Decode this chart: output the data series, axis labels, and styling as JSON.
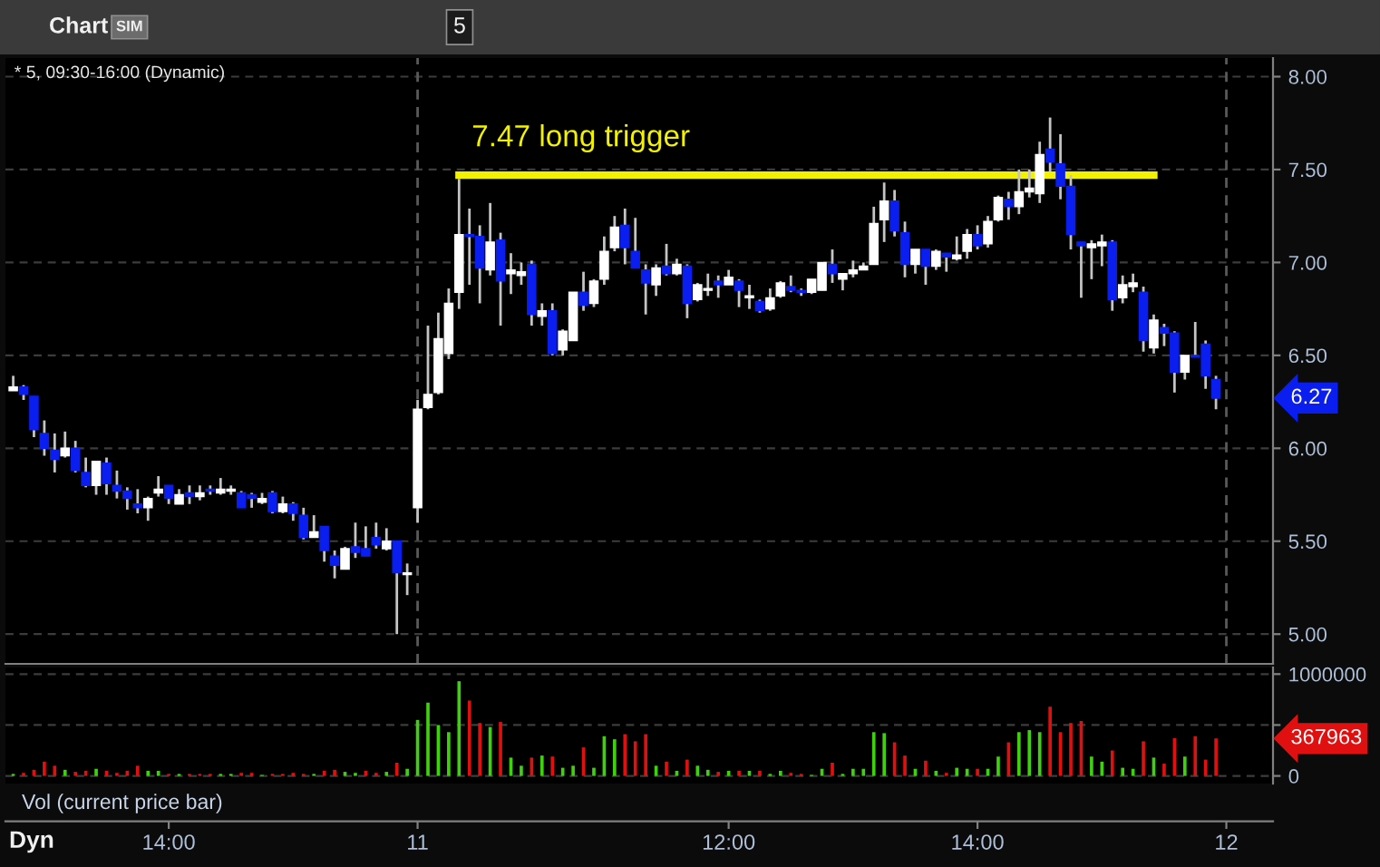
{
  "chart_data": [
    {
      "type": "candlestick",
      "title": "* 5, 09:30-16:00 (Dynamic)",
      "categories": [
        null,
        null,
        null,
        null,
        null,
        null,
        null,
        null,
        null,
        null,
        null,
        null,
        null,
        null,
        null,
        null,
        null,
        null,
        null,
        null,
        null,
        null,
        null,
        null,
        null,
        null,
        null,
        null,
        null,
        null,
        null,
        null,
        null,
        null,
        null,
        null,
        null,
        null,
        null,
        null,
        null,
        null,
        null,
        null,
        null,
        null,
        null,
        null,
        null,
        null,
        null,
        null,
        null,
        null,
        null,
        null,
        null,
        null,
        null,
        null,
        null,
        null,
        null,
        null,
        null,
        null,
        null,
        null,
        null,
        null,
        null,
        null,
        null,
        null,
        null,
        null,
        null,
        null,
        null,
        null,
        null,
        null,
        null,
        null,
        null,
        null,
        null,
        null,
        null,
        null,
        null,
        null,
        null,
        null,
        null,
        null,
        null,
        null,
        null,
        null,
        null,
        null,
        null,
        null,
        null,
        null,
        null,
        null,
        null,
        null,
        null,
        null,
        null,
        null,
        null,
        null,
        null,
        null
      ],
      "ohlc": [
        [
          6.31,
          6.39,
          6.31,
          6.33
        ],
        [
          6.33,
          6.34,
          6.26,
          6.29
        ],
        [
          6.28,
          6.28,
          6.06,
          6.1
        ],
        [
          6.08,
          6.15,
          5.96,
          6.0
        ],
        [
          5.99,
          6.08,
          5.87,
          5.94
        ],
        [
          5.96,
          6.09,
          5.95,
          6.0
        ],
        [
          6.0,
          6.04,
          5.87,
          5.88
        ],
        [
          5.87,
          5.95,
          5.79,
          5.8
        ],
        [
          5.8,
          5.93,
          5.75,
          5.93
        ],
        [
          5.92,
          5.95,
          5.75,
          5.81
        ],
        [
          5.8,
          5.88,
          5.73,
          5.77
        ],
        [
          5.77,
          5.79,
          5.67,
          5.73
        ],
        [
          5.7,
          5.78,
          5.65,
          5.68
        ],
        [
          5.68,
          5.74,
          5.61,
          5.73
        ],
        [
          5.76,
          5.85,
          5.74,
          5.78
        ],
        [
          5.8,
          5.8,
          5.7,
          5.73
        ],
        [
          5.7,
          5.78,
          5.7,
          5.75
        ],
        [
          5.76,
          5.8,
          5.7,
          5.74
        ],
        [
          5.74,
          5.8,
          5.72,
          5.76
        ],
        [
          5.78,
          5.8,
          5.75,
          5.77
        ],
        [
          5.76,
          5.84,
          5.75,
          5.78
        ],
        [
          5.77,
          5.8,
          5.75,
          5.78
        ],
        [
          5.76,
          5.77,
          5.68,
          5.68
        ],
        [
          5.75,
          5.76,
          5.68,
          5.73
        ],
        [
          5.71,
          5.76,
          5.7,
          5.73
        ],
        [
          5.76,
          5.77,
          5.65,
          5.66
        ],
        [
          5.66,
          5.74,
          5.65,
          5.7
        ],
        [
          5.7,
          5.71,
          5.61,
          5.65
        ],
        [
          5.64,
          5.68,
          5.51,
          5.52
        ],
        [
          5.52,
          5.64,
          5.52,
          5.55
        ],
        [
          5.58,
          5.58,
          5.39,
          5.45
        ],
        [
          5.42,
          5.45,
          5.3,
          5.37
        ],
        [
          5.35,
          5.47,
          5.35,
          5.46
        ],
        [
          5.47,
          5.6,
          5.41,
          5.44
        ],
        [
          5.46,
          5.58,
          5.42,
          5.42
        ],
        [
          5.52,
          5.6,
          5.46,
          5.48
        ],
        [
          5.46,
          5.57,
          5.45,
          5.5
        ],
        [
          5.5,
          5.5,
          5.0,
          5.33
        ],
        [
          5.32,
          5.38,
          5.21,
          5.33
        ],
        [
          5.68,
          6.26,
          5.6,
          6.21
        ],
        [
          6.22,
          6.66,
          6.21,
          6.29
        ],
        [
          6.3,
          6.73,
          6.29,
          6.59
        ],
        [
          6.51,
          6.86,
          6.48,
          6.78
        ],
        [
          6.84,
          7.45,
          6.75,
          7.15
        ],
        [
          7.15,
          7.29,
          6.88,
          7.14
        ],
        [
          7.14,
          7.2,
          6.78,
          6.97
        ],
        [
          6.96,
          7.32,
          6.93,
          7.11
        ],
        [
          7.12,
          7.16,
          6.66,
          6.9
        ],
        [
          6.94,
          7.05,
          6.83,
          6.96
        ],
        [
          6.93,
          7.0,
          6.88,
          6.95
        ],
        [
          6.99,
          7.01,
          6.66,
          6.72
        ],
        [
          6.71,
          6.78,
          6.66,
          6.74
        ],
        [
          6.74,
          6.78,
          6.5,
          6.51
        ],
        [
          6.53,
          6.64,
          6.5,
          6.63
        ],
        [
          6.58,
          6.84,
          6.58,
          6.84
        ],
        [
          6.84,
          6.95,
          6.74,
          6.77
        ],
        [
          6.78,
          6.91,
          6.76,
          6.9
        ],
        [
          6.91,
          7.14,
          6.88,
          7.06
        ],
        [
          7.08,
          7.25,
          7.06,
          7.19
        ],
        [
          7.2,
          7.29,
          6.99,
          7.08
        ],
        [
          7.06,
          7.24,
          6.97,
          6.97
        ],
        [
          6.96,
          6.99,
          6.72,
          6.89
        ],
        [
          6.88,
          6.99,
          6.82,
          6.97
        ],
        [
          6.98,
          7.1,
          6.93,
          6.94
        ],
        [
          6.94,
          7.02,
          6.93,
          6.99
        ],
        [
          6.98,
          6.99,
          6.7,
          6.78
        ],
        [
          6.8,
          6.89,
          6.79,
          6.88
        ],
        [
          6.85,
          6.94,
          6.82,
          6.86
        ],
        [
          6.9,
          6.93,
          6.81,
          6.88
        ],
        [
          6.88,
          6.96,
          6.88,
          6.92
        ],
        [
          6.9,
          6.91,
          6.76,
          6.85
        ],
        [
          6.81,
          6.88,
          6.75,
          6.82
        ],
        [
          6.79,
          6.8,
          6.73,
          6.74
        ],
        [
          6.75,
          6.86,
          6.74,
          6.81
        ],
        [
          6.82,
          6.9,
          6.81,
          6.89
        ],
        [
          6.87,
          6.93,
          6.84,
          6.85
        ],
        [
          6.85,
          6.86,
          6.82,
          6.84
        ],
        [
          6.84,
          6.91,
          6.83,
          6.91
        ],
        [
          6.85,
          7.0,
          6.85,
          7.0
        ],
        [
          6.99,
          7.07,
          6.89,
          6.94
        ],
        [
          6.91,
          6.94,
          6.85,
          6.94
        ],
        [
          6.94,
          7.01,
          6.92,
          6.96
        ],
        [
          6.96,
          7.0,
          6.96,
          6.98
        ],
        [
          6.99,
          7.3,
          6.99,
          7.21
        ],
        [
          7.23,
          7.43,
          7.11,
          7.33
        ],
        [
          7.33,
          7.39,
          7.14,
          7.17
        ],
        [
          7.16,
          7.22,
          6.92,
          6.99
        ],
        [
          6.99,
          7.07,
          6.94,
          7.07
        ],
        [
          7.07,
          7.07,
          6.88,
          6.98
        ],
        [
          6.98,
          7.07,
          6.96,
          7.06
        ],
        [
          7.05,
          7.05,
          6.95,
          7.03
        ],
        [
          7.02,
          7.14,
          7.01,
          7.04
        ],
        [
          7.06,
          7.18,
          7.02,
          7.15
        ],
        [
          7.15,
          7.2,
          7.07,
          7.09
        ],
        [
          7.1,
          7.25,
          7.08,
          7.22
        ],
        [
          7.23,
          7.36,
          7.22,
          7.35
        ],
        [
          7.34,
          7.38,
          7.23,
          7.3
        ],
        [
          7.3,
          7.5,
          7.26,
          7.38
        ],
        [
          7.38,
          7.5,
          7.35,
          7.4
        ],
        [
          7.37,
          7.65,
          7.32,
          7.58
        ],
        [
          7.61,
          7.78,
          7.49,
          7.54
        ],
        [
          7.53,
          7.69,
          7.34,
          7.41
        ],
        [
          7.41,
          7.47,
          7.07,
          7.15
        ],
        [
          7.11,
          7.11,
          6.81,
          7.09
        ],
        [
          7.08,
          7.12,
          6.91,
          7.1
        ],
        [
          7.09,
          7.15,
          6.98,
          7.11
        ],
        [
          7.11,
          7.12,
          6.74,
          6.8
        ],
        [
          6.81,
          6.93,
          6.78,
          6.88
        ],
        [
          6.87,
          6.94,
          6.84,
          6.89
        ],
        [
          6.84,
          6.87,
          6.52,
          6.58
        ],
        [
          6.54,
          6.72,
          6.51,
          6.69
        ],
        [
          6.65,
          6.67,
          6.55,
          6.62
        ],
        [
          6.62,
          6.63,
          6.3,
          6.41
        ],
        [
          6.41,
          6.5,
          6.37,
          6.5
        ],
        [
          6.5,
          6.68,
          6.49,
          6.49
        ],
        [
          6.56,
          6.58,
          6.32,
          6.39
        ],
        [
          6.37,
          6.39,
          6.21,
          6.27
        ],
        null
      ],
      "colors": [
        "#ffffff",
        "#0a1ef0",
        "#0a1ef0",
        "#0a1ef0",
        "#0a1ef0",
        "#ffffff",
        "#0a1ef0",
        "#0a1ef0",
        "#ffffff",
        "#0a1ef0",
        "#0a1ef0",
        "#0a1ef0",
        "#0a1ef0",
        "#ffffff",
        "#ffffff",
        "#0a1ef0",
        "#ffffff",
        "#0a1ef0",
        "#ffffff",
        "#0a1ef0",
        "#ffffff",
        "#ffffff",
        "#0a1ef0",
        "#0a1ef0",
        "#ffffff",
        "#0a1ef0",
        "#ffffff",
        "#0a1ef0",
        "#0a1ef0",
        "#ffffff",
        "#0a1ef0",
        "#0a1ef0",
        "#ffffff",
        "#0a1ef0",
        "#0a1ef0",
        "#0a1ef0",
        "#ffffff",
        "#0a1ef0",
        "#ffffff",
        "#ffffff",
        "#ffffff",
        "#ffffff",
        "#ffffff",
        "#ffffff",
        "#0a1ef0",
        "#0a1ef0",
        "#ffffff",
        "#0a1ef0",
        "#ffffff",
        "#ffffff",
        "#0a1ef0",
        "#ffffff",
        "#0a1ef0",
        "#ffffff",
        "#ffffff",
        "#0a1ef0",
        "#ffffff",
        "#ffffff",
        "#ffffff",
        "#0a1ef0",
        "#0a1ef0",
        "#0a1ef0",
        "#ffffff",
        "#0a1ef0",
        "#ffffff",
        "#0a1ef0",
        "#ffffff",
        "#ffffff",
        "#0a1ef0",
        "#ffffff",
        "#0a1ef0",
        "#ffffff",
        "#0a1ef0",
        "#ffffff",
        "#ffffff",
        "#0a1ef0",
        "#0a1ef0",
        "#ffffff",
        "#ffffff",
        "#0a1ef0",
        "#ffffff",
        "#ffffff",
        "#ffffff",
        "#ffffff",
        "#ffffff",
        "#0a1ef0",
        "#0a1ef0",
        "#ffffff",
        "#0a1ef0",
        "#ffffff",
        "#0a1ef0",
        "#ffffff",
        "#ffffff",
        "#0a1ef0",
        "#ffffff",
        "#ffffff",
        "#0a1ef0",
        "#ffffff",
        "#ffffff",
        "#ffffff",
        "#0a1ef0",
        "#0a1ef0",
        "#0a1ef0",
        "#0a1ef0",
        "#ffffff",
        "#ffffff",
        "#0a1ef0",
        "#ffffff",
        "#ffffff",
        "#0a1ef0",
        "#ffffff",
        "#0a1ef0",
        "#0a1ef0",
        "#ffffff",
        "#0a1ef0",
        "#0a1ef0",
        "#0a1ef0",
        null
      ],
      "series": [
        {
          "type": "line",
          "name": "7.47 long trigger",
          "color": "#f2f200",
          "values": [
            null,
            null,
            null,
            null,
            null,
            null,
            null,
            null,
            null,
            null,
            null,
            null,
            null,
            null,
            null,
            null,
            null,
            null,
            null,
            null,
            null,
            null,
            null,
            null,
            null,
            null,
            null,
            null,
            null,
            null,
            null,
            null,
            null,
            null,
            null,
            null,
            null,
            null,
            null,
            null,
            null,
            null,
            null,
            7.47,
            7.47,
            7.47,
            7.47,
            7.47,
            7.47,
            7.47,
            7.47,
            7.47,
            7.47,
            7.47,
            7.47,
            7.47,
            7.47,
            7.47,
            7.47,
            7.47,
            7.47,
            7.47,
            7.47,
            7.47,
            7.47,
            7.47,
            7.47,
            7.47,
            7.47,
            7.47,
            7.47,
            7.47,
            7.47,
            7.47,
            7.47,
            7.47,
            7.47,
            7.47,
            7.47,
            7.47,
            7.47,
            7.47,
            7.47,
            7.47,
            7.47,
            7.47,
            7.47,
            7.47,
            7.47,
            7.47,
            7.47,
            7.47,
            7.47,
            7.47,
            7.47,
            7.47,
            7.47,
            7.47,
            7.47,
            7.47,
            7.47,
            7.47,
            7.47,
            7.47,
            7.47,
            7.47,
            7.47,
            7.47,
            7.47,
            7.47,
            7.47,
            null,
            null,
            null,
            null,
            null,
            null,
            null
          ]
        }
      ],
      "ylim": [
        4.84,
        8.1
      ],
      "yticks": [
        {
          "value": 5,
          "label": "5.00"
        },
        {
          "value": 5.5,
          "label": "5.50"
        },
        {
          "value": 6,
          "label": "6.00"
        },
        {
          "value": 6.5,
          "label": "6.50"
        },
        {
          "value": 7,
          "label": "7.00"
        },
        {
          "value": 7.5,
          "label": "7.50"
        },
        {
          "value": 8,
          "label": "8.00"
        }
      ],
      "grid": "y",
      "tick_labels": "y",
      "ref_lines": [
        {
          "axis": "x",
          "value": "11",
          "color": "#5a5a5a",
          "line_style": "dashed"
        },
        {
          "axis": "x",
          "value": "12",
          "color": "#5a5a5a",
          "line_style": "dashed"
        }
      ],
      "annotations": [
        "Chart",
        "SIM",
        "5",
        "6.27"
      ]
    },
    {
      "type": "bar",
      "title": "Vol (current price bar)",
      "categories": [
        null,
        null,
        null,
        null,
        null,
        null,
        null,
        null,
        null,
        null,
        null,
        null,
        null,
        null,
        null,
        "14:00",
        null,
        null,
        null,
        null,
        null,
        null,
        null,
        null,
        null,
        null,
        null,
        null,
        null,
        null,
        null,
        null,
        null,
        null,
        null,
        null,
        null,
        null,
        null,
        "11",
        null,
        null,
        null,
        null,
        null,
        null,
        null,
        null,
        null,
        null,
        null,
        null,
        null,
        null,
        null,
        null,
        null,
        null,
        null,
        null,
        null,
        null,
        null,
        null,
        null,
        null,
        null,
        null,
        null,
        "12:00",
        null,
        null,
        null,
        null,
        null,
        null,
        null,
        null,
        null,
        null,
        null,
        null,
        null,
        null,
        null,
        null,
        null,
        null,
        null,
        null,
        null,
        null,
        null,
        "14:00",
        null,
        null,
        null,
        null,
        null,
        null,
        null,
        null,
        null,
        null,
        null,
        null,
        null,
        null,
        null,
        null,
        null,
        null,
        null,
        null,
        null,
        null,
        null,
        "12"
      ],
      "values": [
        20000,
        30000,
        60000,
        140000,
        100000,
        60000,
        40000,
        50000,
        70000,
        50000,
        30000,
        50000,
        100000,
        50000,
        50000,
        20000,
        20000,
        20000,
        20000,
        20000,
        20000,
        20000,
        30000,
        30000,
        10000,
        20000,
        20000,
        30000,
        20000,
        20000,
        50000,
        60000,
        40000,
        30000,
        50000,
        30000,
        40000,
        130000,
        70000,
        550000,
        720000,
        500000,
        430000,
        930000,
        740000,
        520000,
        480000,
        530000,
        180000,
        100000,
        180000,
        200000,
        190000,
        80000,
        100000,
        280000,
        80000,
        390000,
        360000,
        410000,
        340000,
        410000,
        100000,
        140000,
        50000,
        160000,
        100000,
        60000,
        40000,
        50000,
        50000,
        50000,
        50000,
        20000,
        50000,
        30000,
        20000,
        10000,
        70000,
        130000,
        20000,
        70000,
        70000,
        430000,
        420000,
        330000,
        200000,
        70000,
        150000,
        50000,
        30000,
        80000,
        70000,
        70000,
        70000,
        190000,
        330000,
        430000,
        450000,
        430000,
        680000,
        430000,
        520000,
        540000,
        190000,
        140000,
        250000,
        80000,
        70000,
        340000,
        180000,
        120000,
        370000,
        190000,
        390000,
        160000,
        367963,
        null
      ],
      "colors": [
        "#3fd10f",
        "#e01010",
        "#e01010",
        "#e01010",
        "#e01010",
        "#3fd10f",
        "#e01010",
        "#e01010",
        "#3fd10f",
        "#e01010",
        "#e01010",
        "#e01010",
        "#e01010",
        "#3fd10f",
        "#3fd10f",
        "#e01010",
        "#3fd10f",
        "#e01010",
        "#e01010",
        "#e01010",
        "#3fd10f",
        "#3fd10f",
        "#e01010",
        "#e01010",
        "#3fd10f",
        "#e01010",
        "#e01010",
        "#e01010",
        "#e01010",
        "#3fd10f",
        "#e01010",
        "#e01010",
        "#3fd10f",
        "#3fd10f",
        "#e01010",
        "#e01010",
        "#3fd10f",
        "#e01010",
        "#3fd10f",
        "#3fd10f",
        "#3fd10f",
        "#3fd10f",
        "#3fd10f",
        "#3fd10f",
        "#e01010",
        "#e01010",
        "#3fd10f",
        "#e01010",
        "#3fd10f",
        "#3fd10f",
        "#e01010",
        "#3fd10f",
        "#e01010",
        "#3fd10f",
        "#3fd10f",
        "#e01010",
        "#3fd10f",
        "#3fd10f",
        "#3fd10f",
        "#e01010",
        "#e01010",
        "#e01010",
        "#3fd10f",
        "#e01010",
        "#3fd10f",
        "#e01010",
        "#3fd10f",
        "#3fd10f",
        "#e01010",
        "#3fd10f",
        "#e01010",
        "#3fd10f",
        "#e01010",
        "#3fd10f",
        "#3fd10f",
        "#e01010",
        "#e01010",
        "#3fd10f",
        "#3fd10f",
        "#e01010",
        "#3fd10f",
        "#3fd10f",
        "#3fd10f",
        "#3fd10f",
        "#3fd10f",
        "#e01010",
        "#e01010",
        "#3fd10f",
        "#e01010",
        "#3fd10f",
        "#e01010",
        "#3fd10f",
        "#3fd10f",
        "#e01010",
        "#3fd10f",
        "#3fd10f",
        "#e01010",
        "#3fd10f",
        "#3fd10f",
        "#3fd10f",
        "#e01010",
        "#e01010",
        "#e01010",
        "#e01010",
        "#3fd10f",
        "#3fd10f",
        "#e01010",
        "#3fd10f",
        "#3fd10f",
        "#e01010",
        "#3fd10f",
        "#e01010",
        "#e01010",
        "#3fd10f",
        "#e01010",
        "#e01010",
        "#e01010",
        null
      ],
      "ylim": [
        -75000,
        1065000
      ],
      "yticks": [
        0,
        {
          "value": 500000,
          "label": null
        },
        1000000
      ],
      "grid": "y",
      "annotations": [
        "Dyn",
        "367963"
      ]
    }
  ]
}
